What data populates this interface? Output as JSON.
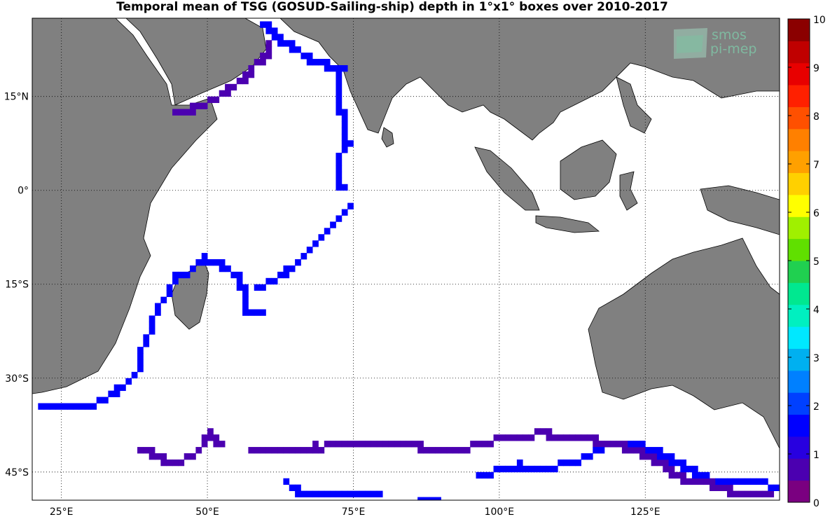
{
  "title": "Temporal mean of TSG (GOSUD-Sailing-ship) depth in 1°x1° boxes over 2010-2017",
  "logo": {
    "line1": "smos",
    "line2": "pi-mep"
  },
  "map": {
    "lon_range": [
      20,
      148
    ],
    "lat_range": [
      -49.5,
      27.5
    ],
    "lon_ticks": [
      {
        "value": 25,
        "label": "25°E"
      },
      {
        "value": 50,
        "label": "50°E"
      },
      {
        "value": 75,
        "label": "75°E"
      },
      {
        "value": 100,
        "label": "100°E"
      },
      {
        "value": 125,
        "label": "125°E"
      }
    ],
    "lat_ticks": [
      {
        "value": 15,
        "label": "15°N"
      },
      {
        "value": 0,
        "label": "0°"
      },
      {
        "value": -15,
        "label": "15°S"
      },
      {
        "value": -30,
        "label": "30°S"
      },
      {
        "value": -45,
        "label": "45°S"
      }
    ],
    "grid": true,
    "land_color": "#808080",
    "ocean_color": "#ffffff"
  },
  "colorbar": {
    "min": 0,
    "max": 10,
    "ticks": [
      "0",
      "1",
      "2",
      "3",
      "4",
      "5",
      "6",
      "7",
      "8",
      "9",
      "10"
    ],
    "colors": [
      "#7a0080",
      "#4b00b0",
      "#2800e0",
      "#0000ff",
      "#0040ff",
      "#0080ff",
      "#00b0f0",
      "#00e8ff",
      "#00f0c0",
      "#00e890",
      "#20d050",
      "#60e000",
      "#a0f000",
      "#ffff00",
      "#ffd000",
      "#ffa000",
      "#ff8000",
      "#ff5000",
      "#ff2000",
      "#e80000",
      "#c00000",
      "#8b0000"
    ]
  },
  "chart_data": {
    "type": "heatmap",
    "title": "Temporal mean of TSG (GOSUD-Sailing-ship) depth in 1°x1° boxes over 2010-2017",
    "value_range": [
      0,
      10
    ],
    "tracks": [
      {
        "value": 0.5,
        "points": [
          [
            44,
            12
          ],
          [
            46,
            12.5
          ],
          [
            49,
            13.5
          ],
          [
            52,
            15
          ],
          [
            55,
            17
          ],
          [
            57,
            18.5
          ],
          [
            58,
            20
          ],
          [
            60,
            21.5
          ],
          [
            60,
            23
          ]
        ]
      },
      {
        "value": 1.5,
        "points": [
          [
            59,
            26.5
          ],
          [
            60,
            26
          ],
          [
            62,
            24
          ],
          [
            65,
            22.5
          ],
          [
            67,
            21
          ],
          [
            70,
            20
          ],
          [
            73,
            19
          ],
          [
            72,
            17
          ],
          [
            72,
            14
          ],
          [
            73,
            12
          ],
          [
            73,
            9
          ],
          [
            74,
            7
          ],
          [
            72,
            5
          ],
          [
            72,
            2
          ],
          [
            73,
            0
          ]
        ]
      },
      {
        "value": 1.5,
        "points": [
          [
            74,
            -3
          ],
          [
            72,
            -5
          ],
          [
            69,
            -8
          ],
          [
            67,
            -10
          ],
          [
            65,
            -12
          ],
          [
            62,
            -14
          ],
          [
            58,
            -16
          ]
        ]
      },
      {
        "value": 1.5,
        "points": [
          [
            21,
            -35
          ],
          [
            25,
            -34.5
          ],
          [
            28,
            -34.5
          ],
          [
            31,
            -34
          ],
          [
            33,
            -33
          ],
          [
            35,
            -31.5
          ],
          [
            37,
            -30
          ],
          [
            38,
            -29
          ],
          [
            38,
            -27
          ],
          [
            39,
            -25
          ],
          [
            40,
            -23
          ],
          [
            41,
            -20
          ],
          [
            42,
            -18
          ],
          [
            43,
            -17
          ],
          [
            44,
            -15
          ],
          [
            45,
            -13.5
          ],
          [
            47,
            -13
          ],
          [
            48,
            -12
          ],
          [
            49,
            -11
          ],
          [
            51,
            -11.5
          ],
          [
            53,
            -12.5
          ],
          [
            55,
            -14
          ],
          [
            56,
            -16
          ],
          [
            56,
            -18
          ],
          [
            57,
            -20
          ],
          [
            59,
            -20
          ]
        ]
      },
      {
        "value": 0.5,
        "points": [
          [
            38,
            -42
          ],
          [
            40,
            -42
          ],
          [
            42,
            -43
          ],
          [
            44,
            -43.5
          ],
          [
            46,
            -43
          ],
          [
            48,
            -42
          ],
          [
            49,
            -41
          ],
          [
            50,
            -39
          ],
          [
            51,
            -40
          ],
          [
            52,
            -40.5
          ]
        ]
      },
      {
        "value": 0.5,
        "points": [
          [
            57,
            -42
          ],
          [
            60,
            -42
          ],
          [
            67,
            -42
          ],
          [
            70,
            -41
          ],
          [
            72,
            -40.5
          ],
          [
            78,
            -40.5
          ],
          [
            82,
            -41
          ],
          [
            86,
            -41
          ],
          [
            88,
            -42
          ],
          [
            92,
            -42
          ],
          [
            95,
            -41
          ],
          [
            98,
            -40.5
          ],
          [
            100,
            -39.5
          ],
          [
            104,
            -39.5
          ],
          [
            106,
            -39
          ],
          [
            108,
            -39
          ],
          [
            110,
            -39.5
          ],
          [
            114,
            -39.5
          ],
          [
            116,
            -40
          ],
          [
            120,
            -40.5
          ],
          [
            122,
            -41.5
          ],
          [
            124,
            -42
          ],
          [
            126,
            -43
          ],
          [
            128,
            -44
          ],
          [
            130,
            -45.5
          ],
          [
            132,
            -46.5
          ],
          [
            134,
            -47
          ],
          [
            136,
            -47
          ],
          [
            138,
            -47.5
          ],
          [
            140,
            -48.5
          ],
          [
            143,
            -49
          ],
          [
            146,
            -49
          ]
        ]
      },
      {
        "value": 1.5,
        "points": [
          [
            96,
            -46
          ],
          [
            99,
            -45
          ],
          [
            101,
            -44.5
          ],
          [
            103,
            -44
          ],
          [
            106,
            -44.5
          ],
          [
            108,
            -45
          ],
          [
            110,
            -44
          ],
          [
            112,
            -43.5
          ],
          [
            114,
            -43
          ],
          [
            116,
            -42
          ],
          [
            118,
            -41
          ],
          [
            120,
            -40.5
          ],
          [
            124,
            -41
          ],
          [
            127,
            -42
          ],
          [
            129,
            -43
          ],
          [
            131,
            -44
          ],
          [
            133,
            -45
          ],
          [
            135,
            -46
          ],
          [
            137,
            -46.5
          ],
          [
            140,
            -46.5
          ],
          [
            144,
            -46.5
          ],
          [
            147,
            -47.5
          ]
        ]
      },
      {
        "value": 1.5,
        "points": [
          [
            63,
            -46.5
          ],
          [
            64,
            -47.5
          ],
          [
            66,
            -48.5
          ],
          [
            70,
            -48.5
          ],
          [
            75,
            -48.5
          ],
          [
            79,
            -48.5
          ]
        ]
      },
      {
        "value": 1.5,
        "points": [
          [
            86,
            -49.5
          ],
          [
            89,
            -49.5
          ]
        ]
      }
    ],
    "isolated_boxes": [
      {
        "lon": 66,
        "lat": -42,
        "value": 0.5
      },
      {
        "lon": 68,
        "lat": -41,
        "value": 0.5
      },
      {
        "lon": 70,
        "lat": -41,
        "value": 0.5
      }
    ]
  }
}
